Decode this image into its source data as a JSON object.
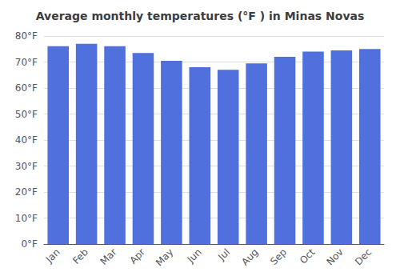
{
  "chart_data": {
    "type": "bar",
    "title": "Average monthly temperatures (°F ) in Minas Novas",
    "categories": [
      "Jan",
      "Feb",
      "Mar",
      "Apr",
      "May",
      "Jun",
      "Jul",
      "Aug",
      "Sep",
      "Oct",
      "Nov",
      "Dec"
    ],
    "values": [
      76.1,
      77.0,
      76.1,
      73.5,
      70.5,
      68.0,
      67.0,
      69.5,
      72.0,
      74.0,
      74.5,
      75.0
    ],
    "ylim": [
      0,
      80
    ],
    "yticks": [
      {
        "value": 0,
        "label": "0°F"
      },
      {
        "value": 10,
        "label": "10°F"
      },
      {
        "value": 20,
        "label": "20°F"
      },
      {
        "value": 30,
        "label": "30°F"
      },
      {
        "value": 40,
        "label": "40°F"
      },
      {
        "value": 50,
        "label": "50°F"
      },
      {
        "value": 60,
        "label": "60°F"
      },
      {
        "value": 70,
        "label": "70°F"
      },
      {
        "value": 80,
        "label": "80°F"
      }
    ],
    "grid": true
  }
}
